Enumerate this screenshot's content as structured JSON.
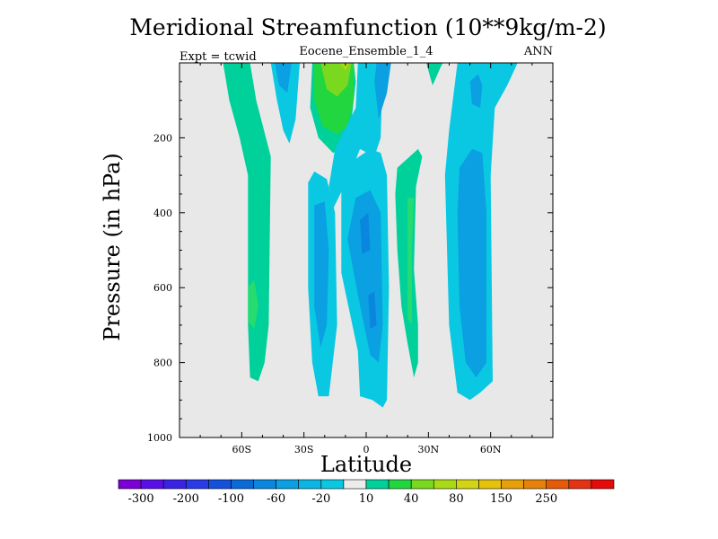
{
  "chart_data": {
    "type": "heatmap",
    "title": "Meridional Streamfunction (10**9kg/m-2)",
    "subtitle": "Eocene_Ensemble_1_4",
    "left_annotation": "Expt = tcwid",
    "right_annotation": "ANN",
    "xlabel": "Latitude",
    "ylabel": "Pressure (in hPa)",
    "xlim": [
      -90,
      90
    ],
    "ylim": [
      1000,
      0
    ],
    "x_ticks": [
      {
        "value": -60,
        "label": "60S"
      },
      {
        "value": -30,
        "label": "30S"
      },
      {
        "value": 0,
        "label": "0"
      },
      {
        "value": 30,
        "label": "30N"
      },
      {
        "value": 60,
        "label": "60N"
      }
    ],
    "y_ticks": [
      {
        "value": 200,
        "label": "200"
      },
      {
        "value": 400,
        "label": "400"
      },
      {
        "value": 600,
        "label": "600"
      },
      {
        "value": 800,
        "label": "800"
      },
      {
        "value": 1000,
        "label": "1000"
      }
    ],
    "colorbar": {
      "colors": [
        "#7a00d6",
        "#5a0fe6",
        "#3a22e6",
        "#2a3ae6",
        "#1450dc",
        "#0a6ad8",
        "#0a86de",
        "#0aa0e2",
        "#0ab6e2",
        "#0ac8e2",
        "#ececec",
        "#00d19a",
        "#22d640",
        "#7ad81e",
        "#aada14",
        "#d2d414",
        "#e6c20a",
        "#e6a00a",
        "#e6820a",
        "#e65a0a",
        "#e63214",
        "#e60a0a"
      ],
      "labels": [
        "-300",
        "-200",
        "-100",
        "-60",
        "-20",
        "10",
        "40",
        "80",
        "150",
        "250"
      ]
    },
    "regions": [
      {
        "level": "10",
        "color": "#00d19a",
        "points": [
          [
            -69,
            0
          ],
          [
            -56,
            0
          ],
          [
            -53,
            100
          ],
          [
            -46,
            250
          ],
          [
            -47,
            700
          ],
          [
            -49,
            800
          ],
          [
            -52,
            850
          ],
          [
            -56,
            840
          ],
          [
            -57,
            700
          ],
          [
            -57,
            300
          ],
          [
            -61,
            200
          ],
          [
            -66,
            100
          ]
        ]
      },
      {
        "level": "20",
        "color": "#26dc70",
        "points": [
          [
            -57,
            600
          ],
          [
            -54,
            580
          ],
          [
            -52,
            650
          ],
          [
            -54,
            710
          ],
          [
            -57,
            690
          ]
        ]
      },
      {
        "level": "-20",
        "color": "#0ac8e2",
        "points": [
          [
            -46,
            0
          ],
          [
            -32,
            0
          ],
          [
            -34,
            150
          ],
          [
            -37,
            215
          ],
          [
            -40,
            180
          ],
          [
            -43,
            100
          ]
        ]
      },
      {
        "level": "-40",
        "color": "#0aa0e2",
        "points": [
          [
            -44,
            0
          ],
          [
            -36,
            0
          ],
          [
            -38,
            80
          ],
          [
            -42,
            60
          ]
        ]
      },
      {
        "level": "10",
        "color": "#00d19a",
        "points": [
          [
            -26,
            0
          ],
          [
            -6,
            0
          ],
          [
            -5,
            50
          ],
          [
            -7,
            150
          ],
          [
            -11,
            230
          ],
          [
            -16,
            240
          ],
          [
            -23,
            200
          ],
          [
            -27,
            120
          ]
        ]
      },
      {
        "level": "40",
        "color": "#22d640",
        "points": [
          [
            -25,
            0
          ],
          [
            -6,
            0
          ],
          [
            -6,
            100
          ],
          [
            -9,
            170
          ],
          [
            -14,
            190
          ],
          [
            -21,
            170
          ],
          [
            -25,
            100
          ]
        ]
      },
      {
        "level": "80",
        "color": "#7ad81e",
        "points": [
          [
            -22,
            0
          ],
          [
            -7,
            0
          ],
          [
            -9,
            60
          ],
          [
            -14,
            90
          ],
          [
            -19,
            70
          ]
        ]
      },
      {
        "level": "120",
        "color": "#aada14",
        "points": [
          [
            -13,
            0
          ],
          [
            -8,
            0
          ],
          [
            -10,
            20
          ]
        ]
      },
      {
        "level": "-20",
        "color": "#0ac8e2",
        "points": [
          [
            -4,
            0
          ],
          [
            8,
            0
          ],
          [
            7,
            200
          ],
          [
            4,
            250
          ],
          [
            -3,
            230
          ],
          [
            -8,
            300
          ],
          [
            -16,
            390
          ],
          [
            -18,
            330
          ],
          [
            -15,
            230
          ],
          [
            -5,
            120
          ]
        ]
      },
      {
        "level": "-40",
        "color": "#0aa0e2",
        "points": [
          [
            5,
            0
          ],
          [
            12,
            0
          ],
          [
            10,
            80
          ],
          [
            6,
            150
          ],
          [
            4,
            50
          ]
        ]
      },
      {
        "level": "-20",
        "color": "#0ac8e2",
        "points": [
          [
            -28,
            320
          ],
          [
            -25,
            290
          ],
          [
            -19,
            310
          ],
          [
            -15,
            400
          ],
          [
            -14,
            700
          ],
          [
            -18,
            890
          ],
          [
            -23,
            890
          ],
          [
            -26,
            800
          ],
          [
            -28,
            600
          ]
        ]
      },
      {
        "level": "-40",
        "color": "#0aa0e2",
        "points": [
          [
            -25,
            380
          ],
          [
            -20,
            370
          ],
          [
            -18,
            500
          ],
          [
            -19,
            700
          ],
          [
            -22,
            760
          ],
          [
            -25,
            650
          ]
        ]
      },
      {
        "level": "-20",
        "color": "#0ac8e2",
        "points": [
          [
            -12,
            340
          ],
          [
            -6,
            260
          ],
          [
            2,
            230
          ],
          [
            7,
            240
          ],
          [
            10,
            300
          ],
          [
            11,
            600
          ],
          [
            10,
            900
          ],
          [
            8,
            920
          ],
          [
            3,
            900
          ],
          [
            -3,
            890
          ],
          [
            -4,
            770
          ],
          [
            -12,
            560
          ]
        ]
      },
      {
        "level": "-40",
        "color": "#0aa0e2",
        "points": [
          [
            -5,
            360
          ],
          [
            2,
            340
          ],
          [
            7,
            400
          ],
          [
            8,
            700
          ],
          [
            6,
            800
          ],
          [
            2,
            780
          ],
          [
            -4,
            620
          ],
          [
            -9,
            470
          ]
        ]
      },
      {
        "level": "-60",
        "color": "#0a86de",
        "points": [
          [
            -3,
            420
          ],
          [
            1,
            400
          ],
          [
            2,
            500
          ],
          [
            -2,
            510
          ]
        ]
      },
      {
        "level": "-60",
        "color": "#0a86de",
        "points": [
          [
            1,
            620
          ],
          [
            4,
            610
          ],
          [
            5,
            700
          ],
          [
            2,
            710
          ]
        ]
      },
      {
        "level": "10",
        "color": "#00d19a",
        "points": [
          [
            15,
            280
          ],
          [
            25,
            230
          ],
          [
            27,
            250
          ],
          [
            24,
            330
          ],
          [
            23,
            550
          ],
          [
            25,
            700
          ],
          [
            25,
            800
          ],
          [
            23,
            840
          ],
          [
            20,
            750
          ],
          [
            17,
            650
          ],
          [
            15,
            500
          ],
          [
            14,
            350
          ]
        ]
      },
      {
        "level": "20",
        "color": "#26dc70",
        "points": [
          [
            20,
            360
          ],
          [
            23,
            360
          ],
          [
            22,
            500
          ],
          [
            22,
            700
          ],
          [
            20,
            680
          ],
          [
            20,
            500
          ]
        ]
      },
      {
        "level": "10",
        "color": "#00d19a",
        "points": [
          [
            29,
            0
          ],
          [
            37,
            0
          ],
          [
            36,
            10
          ],
          [
            32,
            60
          ],
          [
            31,
            40
          ]
        ]
      },
      {
        "level": "-20",
        "color": "#0ac8e2",
        "points": [
          [
            44,
            0
          ],
          [
            73,
            0
          ],
          [
            68,
            60
          ],
          [
            62,
            120
          ],
          [
            60,
            300
          ],
          [
            61,
            850
          ],
          [
            55,
            880
          ],
          [
            50,
            900
          ],
          [
            44,
            880
          ],
          [
            40,
            700
          ],
          [
            38,
            300
          ],
          [
            40,
            180
          ]
        ]
      },
      {
        "level": "-40",
        "color": "#0aa0e2",
        "points": [
          [
            50,
            50
          ],
          [
            54,
            30
          ],
          [
            56,
            60
          ],
          [
            55,
            120
          ],
          [
            51,
            110
          ]
        ]
      },
      {
        "level": "-40",
        "color": "#0aa0e2",
        "points": [
          [
            45,
            280
          ],
          [
            51,
            230
          ],
          [
            56,
            240
          ],
          [
            58,
            400
          ],
          [
            58,
            800
          ],
          [
            53,
            840
          ],
          [
            48,
            800
          ],
          [
            45,
            650
          ],
          [
            44,
            400
          ]
        ]
      }
    ]
  }
}
